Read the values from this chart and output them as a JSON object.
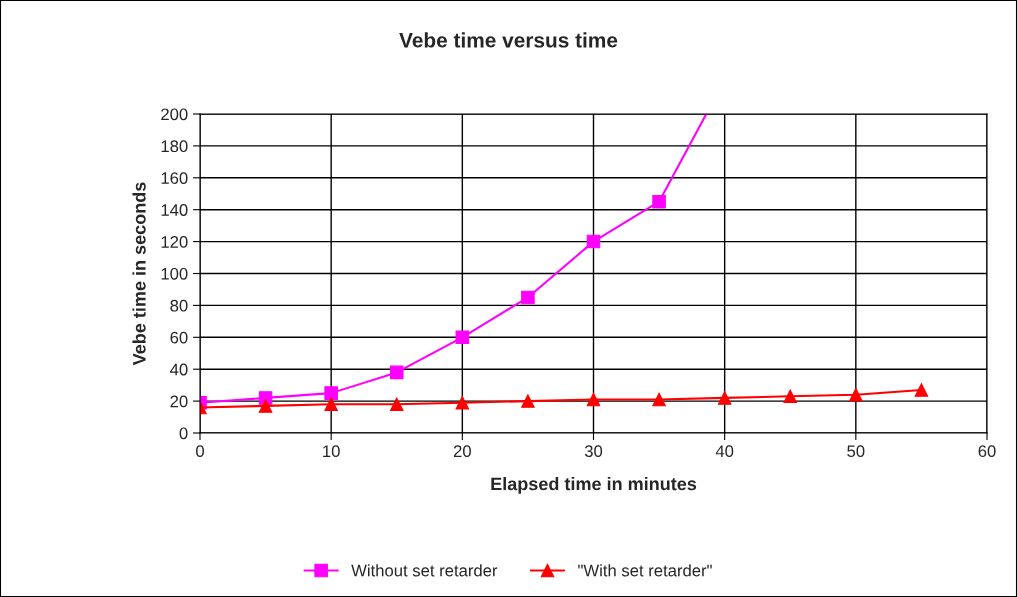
{
  "chart_data": {
    "type": "line",
    "title": "Vebe time versus time",
    "xlabel": "Elapsed time in minutes",
    "ylabel": "Vebe time in seconds",
    "xlim": [
      0,
      60
    ],
    "xticks": [
      0,
      10,
      20,
      30,
      40,
      50,
      60
    ],
    "ylim": [
      0,
      200
    ],
    "yticks": [
      0,
      20,
      40,
      60,
      80,
      100,
      120,
      140,
      160,
      180,
      200
    ],
    "grid": true,
    "legend": "bottom",
    "series": [
      {
        "name": "Without set retarder",
        "color": "#ff00ff",
        "marker": "square",
        "x": [
          0,
          5,
          10,
          15,
          20,
          25,
          30,
          35
        ],
        "values": [
          19,
          22,
          25,
          38,
          60,
          85,
          120,
          145
        ]
      },
      {
        "color": "#ff00ff",
        "marker": "none",
        "x": [
          35,
          38.6
        ],
        "values": [
          145,
          200
        ]
      },
      {
        "name": "\"With set retarder\"",
        "color": "#ff0000",
        "marker": "triangle",
        "x": [
          0,
          5,
          10,
          15,
          20,
          25,
          30,
          35,
          40,
          45,
          50,
          55
        ],
        "values": [
          16,
          17,
          18,
          18,
          19,
          20,
          21,
          21,
          22,
          23,
          24,
          27
        ]
      }
    ]
  }
}
